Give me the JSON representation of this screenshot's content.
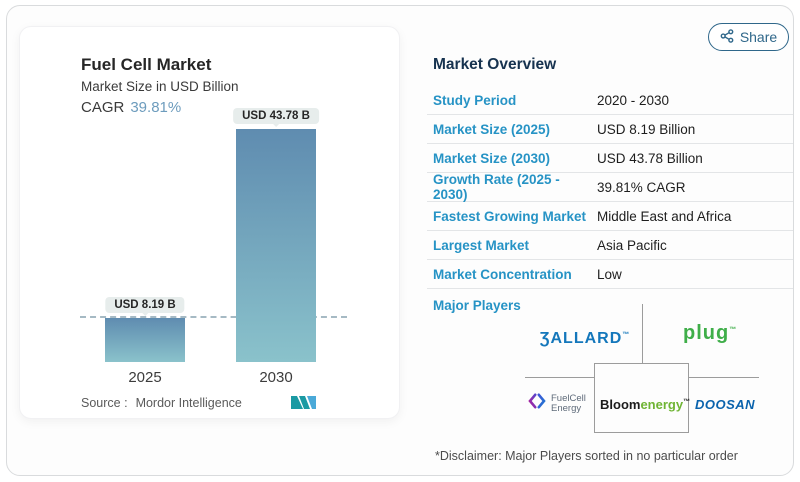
{
  "share": {
    "label": "Share"
  },
  "chart_card": {
    "title": "Fuel Cell Market",
    "subtitle": "Market Size in USD Billion",
    "cagr_label": "CAGR",
    "cagr_value": "39.81%",
    "source_label": "Source :",
    "source_value": "Mordor Intelligence"
  },
  "chart_data": {
    "type": "bar",
    "title": "Fuel Cell Market",
    "subtitle": "Market Size in USD Billion",
    "unit": "USD Billion",
    "cagr": "39.81%",
    "categories": [
      "2025",
      "2030"
    ],
    "values": [
      8.19,
      43.78
    ],
    "value_labels": [
      "USD 8.19 B",
      "USD 43.78 B"
    ],
    "ylim": [
      0,
      44
    ],
    "baseline_dashed_at": 8.19,
    "bar_gradient_top": "#5f8cb0",
    "bar_gradient_bottom": "#8ac2cb",
    "grid": false,
    "legend": false
  },
  "overview": {
    "heading": "Market Overview",
    "rows": [
      {
        "label": "Study Period",
        "value": "2020 - 2030"
      },
      {
        "label": "Market Size (2025)",
        "value": "USD 8.19 Billion"
      },
      {
        "label": "Market Size (2030)",
        "value": "USD 43.78 Billion"
      },
      {
        "label": "Growth Rate (2025 - 2030)",
        "value": "39.81% CAGR"
      },
      {
        "label": "Fastest Growing Market",
        "value": "Middle East and Africa"
      },
      {
        "label": "Largest Market",
        "value": "Asia Pacific"
      },
      {
        "label": "Market Concentration",
        "value": "Low"
      }
    ],
    "major_players_label": "Major Players",
    "players": {
      "ballard": {
        "text": "ƷALLARD",
        "tm": "™"
      },
      "plug": {
        "text": "plug",
        "tm": "™"
      },
      "fuelcell": {
        "line1": "FuelCell",
        "line2": "Energy"
      },
      "bloom": {
        "part1": "Bloom",
        "part2": "energy",
        "tm": "™"
      },
      "doosan": {
        "text": "DOOSAN"
      }
    },
    "disclaimer": "*Disclaimer: Major Players sorted in no particular order"
  },
  "colors": {
    "label_blue": "#2693c5",
    "heading_navy": "#16324f",
    "share_teal": "#2f678a",
    "cagr_blue": "#6d9cbd",
    "ballard_blue": "#1477bb",
    "plug_green": "#3fae49",
    "bloom_green": "#6fb434",
    "doosan_blue": "#0a63ad",
    "bar_top": "#5f8cb0",
    "bar_bottom": "#8ac2cb"
  }
}
